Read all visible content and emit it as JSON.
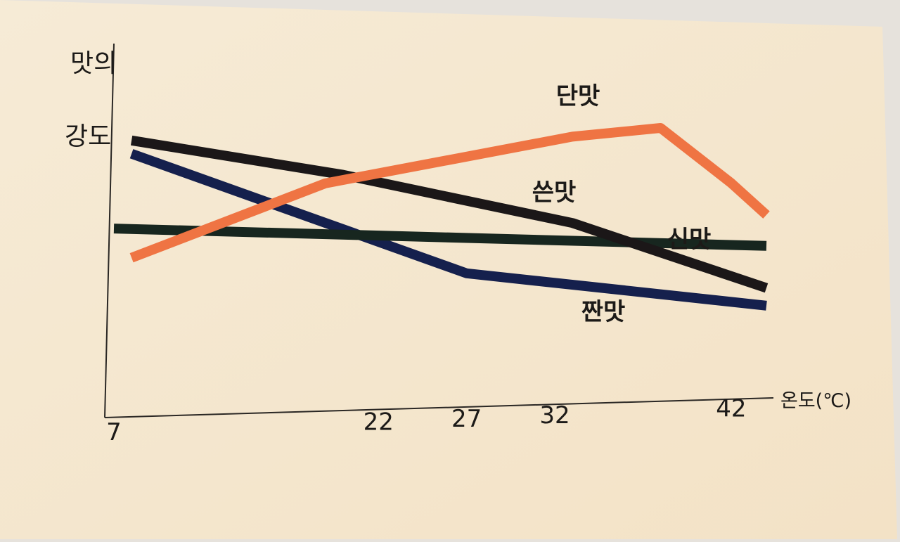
{
  "chart_data": {
    "type": "line",
    "title": "",
    "ylabel_lines": [
      "맛의",
      "강도"
    ],
    "xlabel": "온도(℃)",
    "x_ticks": [
      7,
      22,
      27,
      32,
      42
    ],
    "xlim": [
      7,
      44
    ],
    "ylim": [
      0,
      100
    ],
    "y_ticks_shown": false,
    "grid": false,
    "legend": "inline labels at line ends",
    "series": [
      {
        "name": "단맛",
        "color": "#ef7443",
        "points": [
          [
            8,
            33
          ],
          [
            19,
            69
          ],
          [
            33,
            93
          ],
          [
            38,
            98
          ],
          [
            42,
            74
          ],
          [
            44,
            60
          ]
        ]
      },
      {
        "name": "쓴맛",
        "color": "#1b1718",
        "points": [
          [
            8,
            86
          ],
          [
            20,
            73
          ],
          [
            33,
            54
          ],
          [
            44,
            27
          ]
        ]
      },
      {
        "name": "신맛",
        "color": "#17261f",
        "points": [
          [
            7,
            46
          ],
          [
            44,
            46
          ]
        ]
      },
      {
        "name": "짠맛",
        "color": "#15204d",
        "points": [
          [
            8,
            80
          ],
          [
            27,
            30
          ],
          [
            44,
            19
          ]
        ]
      }
    ]
  }
}
